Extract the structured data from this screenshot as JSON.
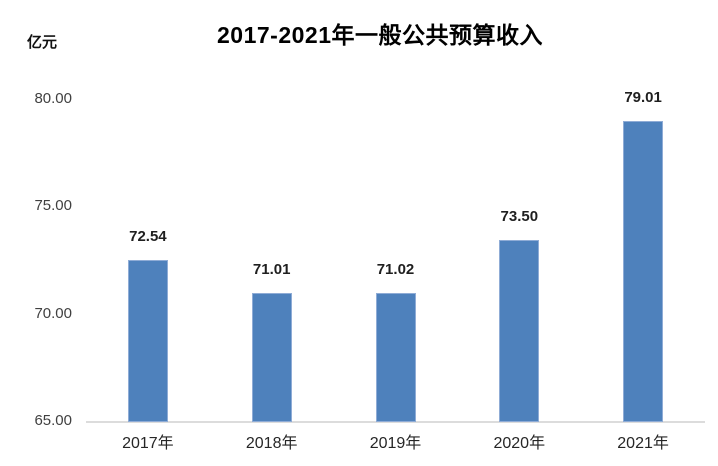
{
  "chart_data": {
    "type": "bar",
    "title": "2017-2021年一般公共预算收入",
    "ylabel": "亿元",
    "xlabel": "",
    "categories": [
      "2017年",
      "2018年",
      "2019年",
      "2020年",
      "2021年"
    ],
    "values": [
      72.54,
      71.01,
      71.02,
      73.5,
      79.01
    ],
    "data_labels": [
      "72.54",
      "71.01",
      "71.02",
      "73.50",
      "79.01"
    ],
    "y_tick_labels": [
      "80.00",
      "75.00",
      "70.00",
      "65.00"
    ],
    "y_tick_values": [
      80,
      75,
      70,
      65
    ],
    "ylim": [
      65,
      80
    ],
    "grid": false,
    "legend": false,
    "bar_color": "#4E81BC",
    "bar_border_color": "#8FACD6",
    "axis_line_color": "#DCDCDC",
    "data_label_color": "#1F1F1F",
    "tick_label_color": "#404040"
  }
}
